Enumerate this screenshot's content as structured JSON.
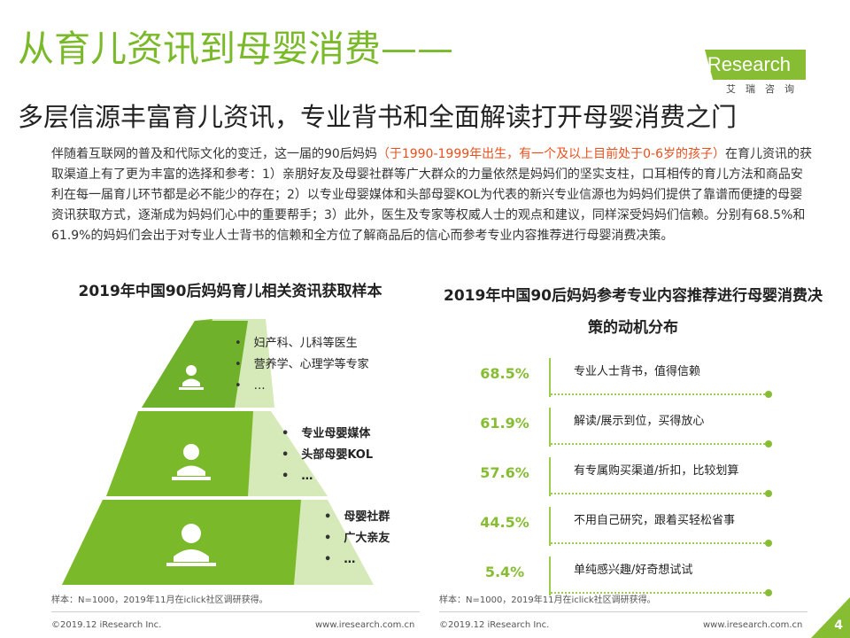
{
  "header": {
    "title_line1": "从育儿资讯到母婴消费——",
    "title_line2": "多层信源丰富育儿资讯，专业背书和全面解读打开母婴消费之门"
  },
  "logo": {
    "brand": "iResearch",
    "subtitle": "艾瑞咨询",
    "accent_color": "#86bd32"
  },
  "intro": {
    "part1": "伴随着互联网的普及和代际文化的变迁，这一届的90后妈妈",
    "highlight": "（于1990-1999年出生，有一个及以上目前处于0-6岁的孩子）",
    "part2": "在育儿资讯的获取渠道上有了更为丰富的选择和参考：1）亲朋好友及母婴社群等广大群众的力量依然是妈妈们的坚实支柱，口耳相传的育儿方法和商品安利在每一届育儿环节都是必不能少的存在；2）以专业母婴媒体和头部母婴KOL为代表的新兴专业信源也为妈妈们提供了靠谱而便捷的母婴资讯获取方式，逐渐成为妈妈们心中的重要帮手；3）此外，医生及专家等权威人士的观点和建议，同样深受妈妈们信赖。分别有68.5%和61.9%的妈妈们会出于对专业人士背书的信赖和全方位了解商品后的信心而参考专业内容推荐进行母婴消费决策。"
  },
  "left_chart": {
    "title": "2019年中国90后妈妈育儿相关资讯获取样本",
    "tiers": [
      {
        "items": [
          "妇产科、儿科等医生",
          "营养学、心理学等专家",
          "…"
        ]
      },
      {
        "items": [
          "专业母婴媒体",
          "头部母婴KOL",
          "…"
        ]
      },
      {
        "items": [
          "母婴社群",
          "广大亲友",
          "…"
        ]
      }
    ],
    "note": "样本：N=1000，2019年11月在iclick社区调研获得。"
  },
  "right_chart": {
    "title": "2019年中国90后妈妈参考专业内容推荐进行母婴消费决策的动机分布",
    "rows": [
      {
        "value": "68.5%",
        "label": "专业人士背书，值得信赖"
      },
      {
        "value": "61.9%",
        "label": "解读/展示到位，买得放心"
      },
      {
        "value": "57.6%",
        "label": "有专属购买渠道/折扣，比较划算"
      },
      {
        "value": "44.5%",
        "label": "不用自己研究，跟着买轻松省事"
      },
      {
        "value": "5.4%",
        "label": "单纯感兴趣/好奇想试试"
      }
    ],
    "note": "样本：N=1000，2019年11月在iclick社区调研获得。"
  },
  "footer": {
    "copyright": "©2019.12 iResearch Inc.",
    "website": "www.iresearch.com.cn",
    "page": "4"
  }
}
